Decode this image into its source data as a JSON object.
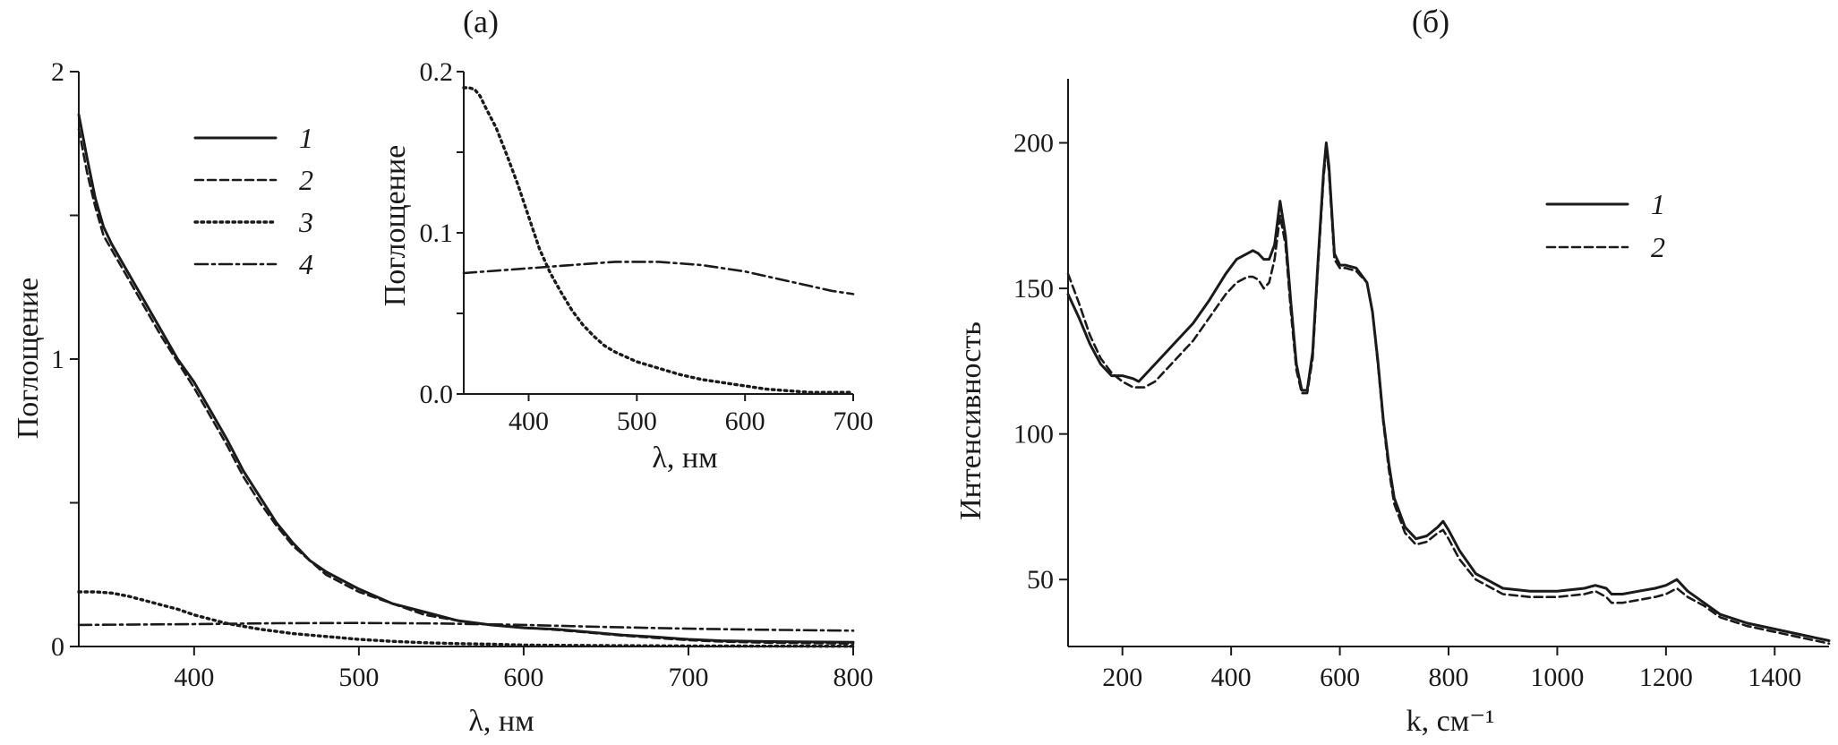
{
  "chart_data": [
    {
      "id": "a",
      "type": "line",
      "panel_label": "(а)",
      "xlabel": "λ, нм",
      "ylabel": "Поглощение",
      "xlim": [
        330,
        800
      ],
      "ylim": [
        0,
        2
      ],
      "xticks": [
        400,
        500,
        600,
        700,
        800
      ],
      "yticks": [
        0,
        0.5,
        1,
        1.5,
        2
      ],
      "ytick_labels": [
        "0",
        "",
        "1",
        "",
        "2"
      ],
      "legend_position": "top-left",
      "series": [
        {
          "name": "1",
          "style": "solid",
          "x": [
            330,
            335,
            340,
            345,
            350,
            360,
            370,
            380,
            390,
            400,
            410,
            420,
            430,
            440,
            450,
            460,
            470,
            480,
            490,
            500,
            520,
            540,
            560,
            580,
            600,
            620,
            640,
            660,
            680,
            700,
            720,
            750,
            800
          ],
          "y": [
            1.85,
            1.7,
            1.56,
            1.46,
            1.4,
            1.3,
            1.2,
            1.1,
            1.0,
            0.92,
            0.82,
            0.72,
            0.61,
            0.52,
            0.43,
            0.36,
            0.3,
            0.26,
            0.23,
            0.2,
            0.15,
            0.12,
            0.09,
            0.075,
            0.065,
            0.06,
            0.05,
            0.04,
            0.033,
            0.025,
            0.02,
            0.017,
            0.015
          ]
        },
        {
          "name": "2",
          "style": "dashed",
          "x": [
            330,
            335,
            340,
            345,
            350,
            360,
            370,
            380,
            390,
            400,
            410,
            420,
            430,
            440,
            450,
            460,
            470,
            480,
            490,
            500,
            520,
            540,
            560,
            580,
            600,
            620,
            640,
            660,
            680,
            700,
            720,
            750,
            800
          ],
          "y": [
            1.8,
            1.65,
            1.53,
            1.43,
            1.38,
            1.28,
            1.18,
            1.08,
            0.99,
            0.9,
            0.8,
            0.7,
            0.59,
            0.5,
            0.42,
            0.35,
            0.3,
            0.25,
            0.22,
            0.19,
            0.15,
            0.11,
            0.09,
            0.075,
            0.065,
            0.058,
            0.048,
            0.038,
            0.03,
            0.022,
            0.017,
            0.013,
            0.01
          ]
        },
        {
          "name": "3",
          "style": "dotted",
          "x": [
            330,
            340,
            350,
            360,
            370,
            380,
            390,
            400,
            420,
            440,
            460,
            480,
            500,
            520,
            540,
            560,
            580,
            600,
            620,
            650,
            700,
            800
          ],
          "y": [
            0.19,
            0.19,
            0.186,
            0.175,
            0.16,
            0.145,
            0.13,
            0.11,
            0.08,
            0.06,
            0.045,
            0.035,
            0.025,
            0.018,
            0.013,
            0.01,
            0.008,
            0.005,
            0.004,
            0.003,
            0.002,
            0.001
          ]
        },
        {
          "name": "4",
          "style": "dashdot",
          "x": [
            330,
            400,
            450,
            500,
            550,
            600,
            650,
            700,
            750,
            800
          ],
          "y": [
            0.075,
            0.078,
            0.081,
            0.082,
            0.08,
            0.075,
            0.068,
            0.062,
            0.058,
            0.055
          ]
        }
      ]
    },
    {
      "id": "a-inset",
      "type": "line",
      "xlabel": "λ, нм",
      "ylabel": "Поглощение",
      "xlim": [
        340,
        700
      ],
      "ylim": [
        0,
        0.2
      ],
      "xticks": [
        400,
        500,
        600,
        700
      ],
      "yticks": [
        0,
        0.05,
        0.1,
        0.15,
        0.2
      ],
      "ytick_labels": [
        "0.0",
        "",
        "0.1",
        "",
        "0.2"
      ],
      "series": [
        {
          "name": "3",
          "style": "dotted",
          "x": [
            340,
            345,
            350,
            355,
            360,
            370,
            380,
            390,
            400,
            410,
            420,
            430,
            440,
            450,
            460,
            470,
            480,
            490,
            500,
            520,
            540,
            560,
            580,
            600,
            620,
            640,
            660,
            680,
            700
          ],
          "y": [
            0.19,
            0.19,
            0.189,
            0.185,
            0.178,
            0.165,
            0.148,
            0.13,
            0.11,
            0.09,
            0.075,
            0.063,
            0.052,
            0.043,
            0.036,
            0.03,
            0.026,
            0.023,
            0.02,
            0.016,
            0.012,
            0.009,
            0.007,
            0.005,
            0.003,
            0.002,
            0.001,
            0.001,
            0.001
          ]
        },
        {
          "name": "4",
          "style": "dashdot",
          "x": [
            340,
            360,
            380,
            400,
            420,
            440,
            460,
            480,
            500,
            520,
            540,
            560,
            580,
            600,
            620,
            640,
            660,
            680,
            700
          ],
          "y": [
            0.075,
            0.076,
            0.077,
            0.078,
            0.079,
            0.08,
            0.081,
            0.082,
            0.082,
            0.082,
            0.081,
            0.08,
            0.078,
            0.076,
            0.073,
            0.07,
            0.067,
            0.064,
            0.062
          ]
        }
      ]
    },
    {
      "id": "b",
      "type": "line",
      "panel_label": "(б)",
      "xlabel": "k, см⁻¹",
      "ylabel": "Интенсивность",
      "xlim": [
        100,
        1500
      ],
      "ylim": [
        27,
        222
      ],
      "xticks": [
        200,
        400,
        600,
        800,
        1000,
        1200,
        1400
      ],
      "yticks": [
        50,
        100,
        150,
        200
      ],
      "legend_position": "top-right",
      "series": [
        {
          "name": "1",
          "style": "solid",
          "x": [
            100,
            120,
            140,
            160,
            180,
            200,
            220,
            230,
            250,
            280,
            300,
            330,
            360,
            390,
            410,
            430,
            440,
            450,
            460,
            470,
            480,
            490,
            500,
            510,
            520,
            530,
            540,
            550,
            560,
            570,
            575,
            580,
            590,
            600,
            610,
            630,
            650,
            660,
            670,
            680,
            690,
            700,
            720,
            740,
            760,
            780,
            790,
            800,
            820,
            850,
            900,
            950,
            1000,
            1050,
            1070,
            1090,
            1100,
            1120,
            1150,
            1180,
            1200,
            1220,
            1240,
            1270,
            1300,
            1350,
            1400,
            1450,
            1500
          ],
          "y": [
            148,
            140,
            131,
            124,
            120,
            120,
            119,
            118,
            122,
            128,
            132,
            138,
            146,
            155,
            160,
            162,
            163,
            162,
            160,
            160,
            165,
            180,
            168,
            145,
            124,
            115,
            115,
            128,
            160,
            190,
            200,
            192,
            162,
            158,
            158,
            157,
            152,
            142,
            125,
            105,
            90,
            78,
            68,
            64,
            65,
            68,
            70,
            67,
            60,
            52,
            47,
            46,
            46,
            47,
            48,
            47,
            45,
            45,
            46,
            47,
            48,
            50,
            46,
            42,
            38,
            35,
            33,
            31,
            29
          ]
        },
        {
          "name": "2",
          "style": "dashed",
          "x": [
            100,
            120,
            140,
            160,
            180,
            200,
            220,
            240,
            260,
            280,
            300,
            330,
            360,
            390,
            410,
            430,
            440,
            450,
            460,
            470,
            480,
            490,
            500,
            510,
            520,
            530,
            540,
            550,
            560,
            570,
            575,
            580,
            590,
            600,
            610,
            630,
            650,
            660,
            670,
            680,
            690,
            700,
            720,
            740,
            760,
            780,
            790,
            800,
            820,
            850,
            900,
            950,
            1000,
            1050,
            1070,
            1090,
            1100,
            1120,
            1150,
            1180,
            1200,
            1220,
            1240,
            1270,
            1300,
            1350,
            1400,
            1450,
            1500
          ],
          "y": [
            155,
            145,
            134,
            126,
            121,
            118,
            116,
            116,
            118,
            122,
            126,
            132,
            140,
            148,
            152,
            154,
            154,
            153,
            150,
            152,
            160,
            175,
            165,
            142,
            122,
            114,
            114,
            126,
            158,
            188,
            198,
            190,
            160,
            157,
            157,
            156,
            152,
            142,
            124,
            104,
            88,
            76,
            66,
            62,
            63,
            66,
            67,
            64,
            57,
            50,
            45,
            44,
            44,
            45,
            46,
            44,
            42,
            42,
            43,
            44,
            45,
            47,
            44,
            41,
            37,
            34,
            32,
            30,
            28
          ]
        }
      ]
    }
  ]
}
